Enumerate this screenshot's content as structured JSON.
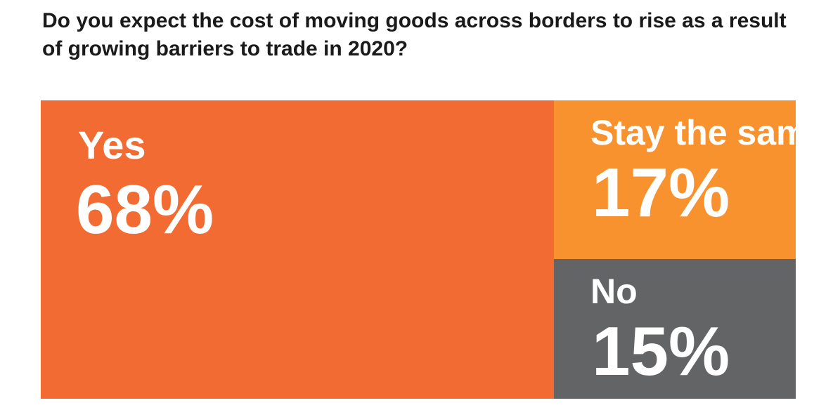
{
  "title": "Do you expect the cost of moving goods across borders to rise as a result of growing barriers to trade in 2020?",
  "chart_data": {
    "type": "treemap",
    "title": "Do you expect the cost of moving goods across borders to rise as a result of growing barriers to trade in 2020?",
    "unit": "%",
    "categories": [
      "Yes",
      "Stay the same",
      "No"
    ],
    "values": [
      68,
      17,
      15
    ],
    "labels": [
      "68%",
      "17%",
      "15%"
    ],
    "colors": [
      "#f26b32",
      "#f7922f",
      "#636466"
    ]
  }
}
